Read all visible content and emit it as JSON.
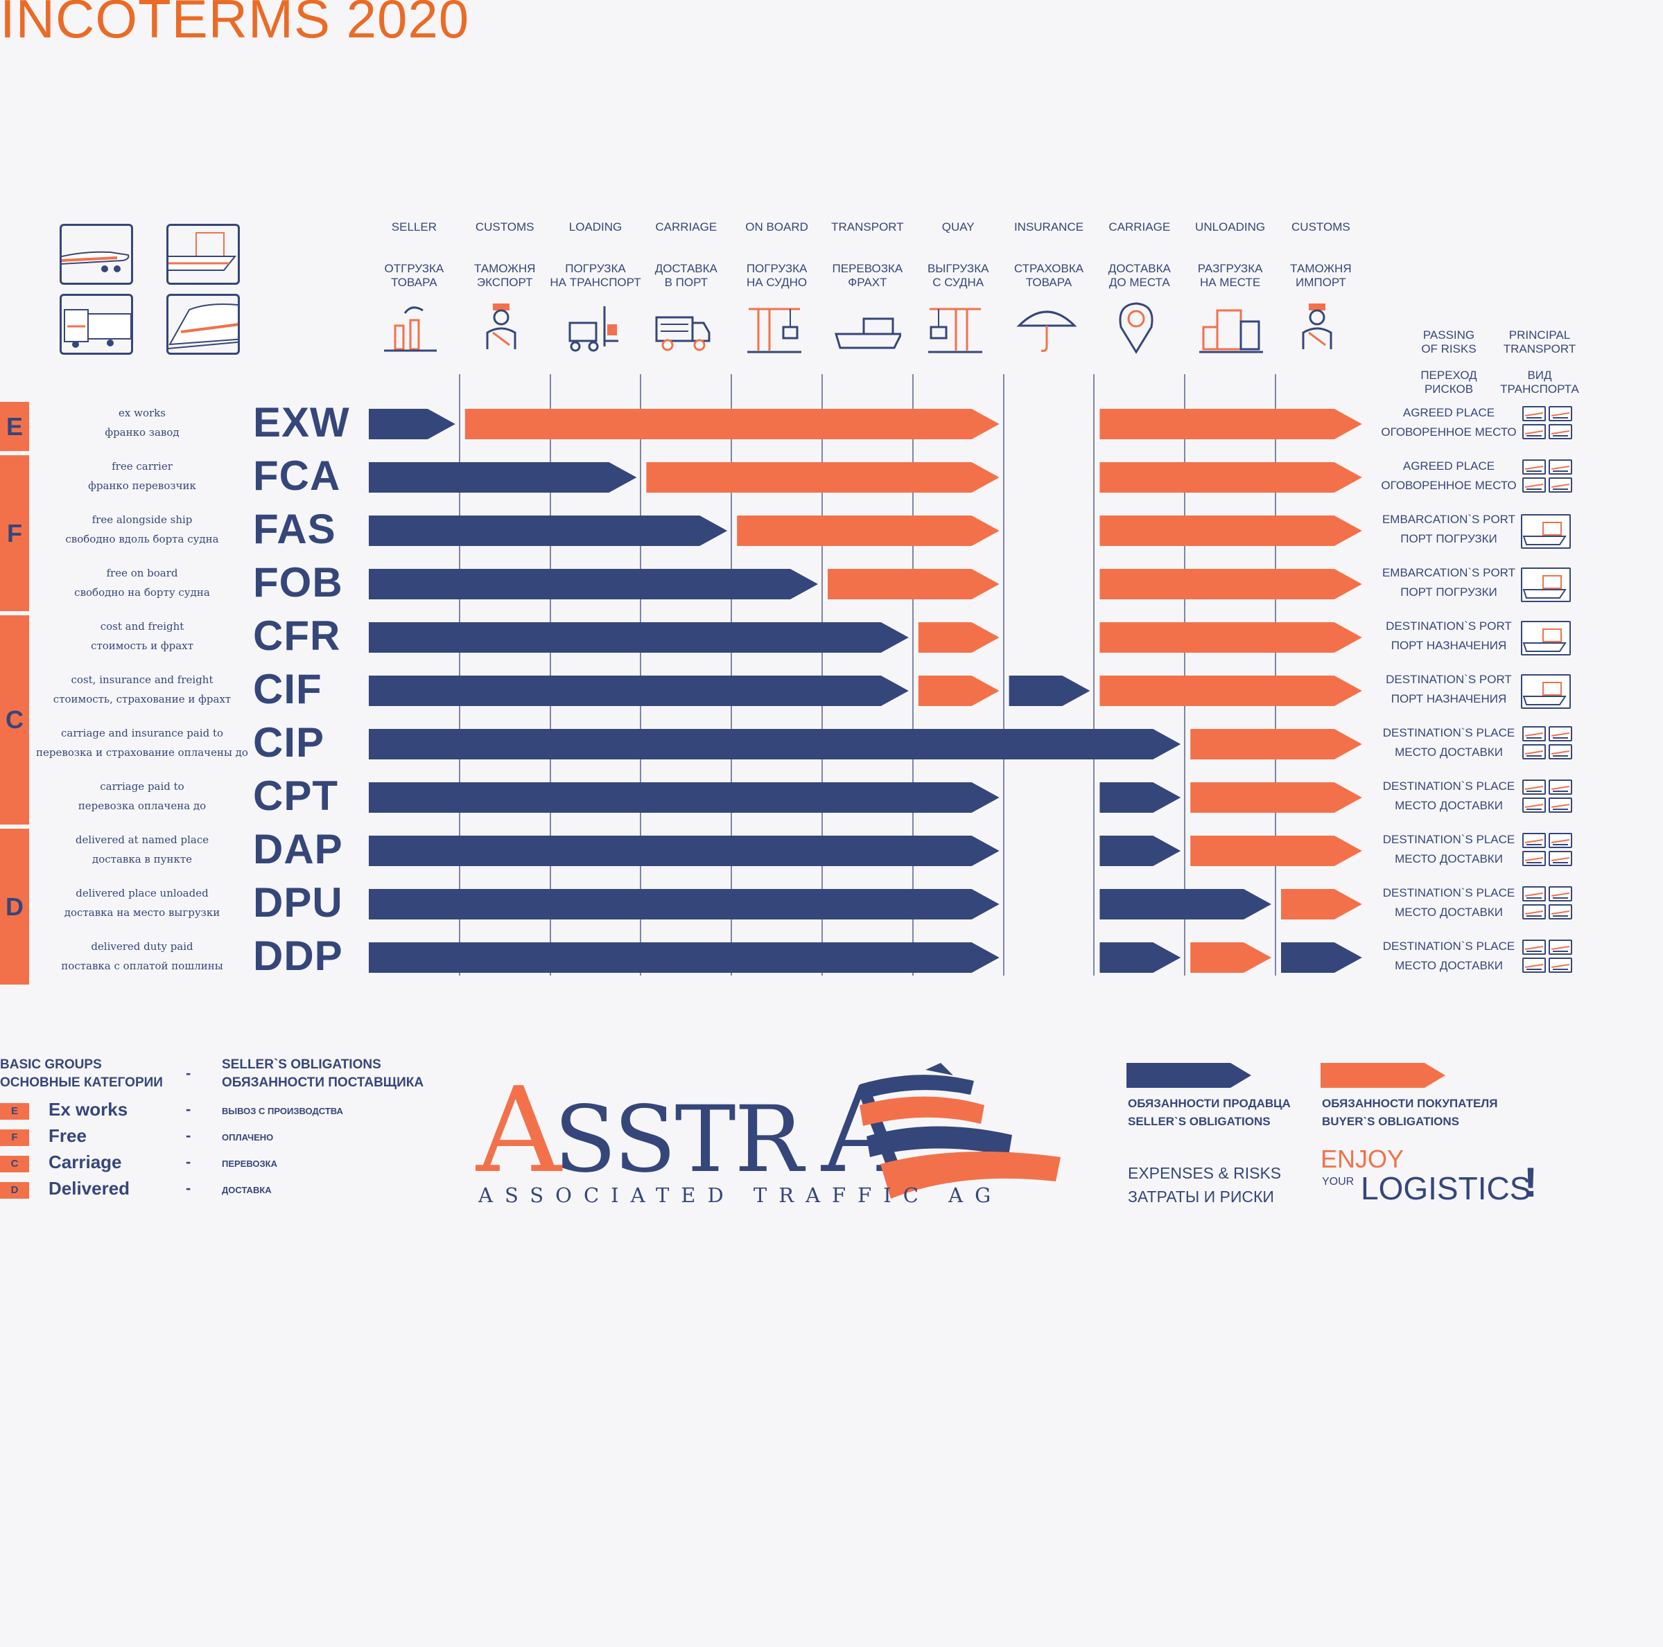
{
  "title": "INCOTERMS 2020",
  "colors": {
    "seller": "#35467a",
    "buyer": "#f3714a",
    "accent": "#ea6b26"
  },
  "transport_pictograms": [
    "airplane-icon",
    "cargo-ship-icon",
    "truck-icon",
    "train-icon"
  ],
  "columns": [
    {
      "en": "SELLER",
      "ru": "ОТГРУЗКА\nТОВАРА",
      "icon": "factory-icon"
    },
    {
      "en": "CUSTOMS",
      "ru": "ТАМОЖНЯ\nЭКСПОРТ",
      "icon": "customs-officer-icon"
    },
    {
      "en": "LOADING",
      "ru": "ПОГРУЗКА\nНА ТРАНСПОРТ",
      "icon": "forklift-icon"
    },
    {
      "en": "CARRIAGE",
      "ru": "ДОСТАВКА\nВ ПОРТ",
      "icon": "truck-icon"
    },
    {
      "en": "ON BOARD",
      "ru": "ПОГРУЗКА\nНА СУДНО",
      "icon": "crane-icon"
    },
    {
      "en": "TRANSPORT",
      "ru": "ПЕРЕВОЗКА\nФРАХТ",
      "icon": "ship-icon"
    },
    {
      "en": "QUAY",
      "ru": "ВЫГРУЗКА\nС СУДНА",
      "icon": "quay-crane-icon"
    },
    {
      "en": "INSURANCE",
      "ru": "СТРАХОВКА\nТОВАРА",
      "icon": "umbrella-icon"
    },
    {
      "en": "CARRIAGE",
      "ru": "ДОСТАВКА\nДО МЕСТА",
      "icon": "map-pin-icon"
    },
    {
      "en": "UNLOADING",
      "ru": "РАЗГРУЗКА\nНА МЕСТЕ",
      "icon": "warehouse-icon"
    },
    {
      "en": "CUSTOMS",
      "ru": "ТАМОЖНЯ\nИМПОРТ",
      "icon": "customs-officer-icon"
    }
  ],
  "right_headers": {
    "risk_en": "PASSING\nOF RISKS",
    "risk_ru": "ПЕРЕХОД\nРИСКОВ",
    "transport_en": "PRINCIPAL\nTRANSPORT",
    "transport_ru": "ВИД\nТРАНСПОРТА"
  },
  "groups": [
    {
      "letter": "E",
      "rows": 1
    },
    {
      "letter": "F",
      "rows": 3
    },
    {
      "letter": "C",
      "rows": 4
    },
    {
      "letter": "D",
      "rows": 3
    }
  ],
  "terms": [
    {
      "code": "EXW",
      "en": "ex works",
      "ru": "франко завод",
      "risk_en": "AGREED PLACE",
      "risk_ru": "ОГОВОРЕННОЕ МЕСТО",
      "transport": "any",
      "segments": [
        {
          "owner": "seller",
          "from": 0,
          "to": 1
        },
        {
          "owner": "buyer",
          "from": 1,
          "to": 7
        },
        {
          "owner": "buyer",
          "from": 8,
          "to": 11
        }
      ]
    },
    {
      "code": "FCA",
      "en": "free carrier",
      "ru": "франко перевозчик",
      "risk_en": "AGREED PLACE",
      "risk_ru": "ОГОВОРЕННОЕ МЕСТО",
      "transport": "any",
      "segments": [
        {
          "owner": "seller",
          "from": 0,
          "to": 3
        },
        {
          "owner": "buyer",
          "from": 3,
          "to": 7
        },
        {
          "owner": "buyer",
          "from": 8,
          "to": 11
        }
      ]
    },
    {
      "code": "FAS",
      "en": "free alongside ship",
      "ru": "свободно вдоль борта судна",
      "risk_en": "EMBARCATION`S PORT",
      "risk_ru": "ПОРТ ПОГРУЗКИ",
      "transport": "sea",
      "segments": [
        {
          "owner": "seller",
          "from": 0,
          "to": 4
        },
        {
          "owner": "buyer",
          "from": 4,
          "to": 7
        },
        {
          "owner": "buyer",
          "from": 8,
          "to": 11
        }
      ]
    },
    {
      "code": "FOB",
      "en": "free on board",
      "ru": "свободно на борту судна",
      "risk_en": "EMBARCATION`S PORT",
      "risk_ru": "ПОРТ ПОГРУЗКИ",
      "transport": "sea",
      "segments": [
        {
          "owner": "seller",
          "from": 0,
          "to": 5
        },
        {
          "owner": "buyer",
          "from": 5,
          "to": 7
        },
        {
          "owner": "buyer",
          "from": 8,
          "to": 11
        }
      ]
    },
    {
      "code": "CFR",
      "en": "cost and freight",
      "ru": "стоимость и фрахт",
      "risk_en": "DESTINATION`S PORT",
      "risk_ru": "ПОРТ НАЗНАЧЕНИЯ",
      "transport": "sea",
      "segments": [
        {
          "owner": "seller",
          "from": 0,
          "to": 6
        },
        {
          "owner": "buyer",
          "from": 6,
          "to": 7
        },
        {
          "owner": "buyer",
          "from": 8,
          "to": 11
        }
      ]
    },
    {
      "code": "CIF",
      "en": "cost, insurance and freight",
      "ru": "стоимость, страхование и фрахт",
      "risk_en": "DESTINATION`S PORT",
      "risk_ru": "ПОРТ НАЗНАЧЕНИЯ",
      "transport": "sea",
      "segments": [
        {
          "owner": "seller",
          "from": 0,
          "to": 6
        },
        {
          "owner": "buyer",
          "from": 6,
          "to": 7
        },
        {
          "owner": "seller",
          "from": 7,
          "to": 8
        },
        {
          "owner": "buyer",
          "from": 8,
          "to": 11
        }
      ]
    },
    {
      "code": "CIP",
      "en": "carriage and insurance paid to",
      "ru": "перевозка и страхование оплачены до",
      "risk_en": "DESTINATION`S PLACE",
      "risk_ru": "МЕСТО ДОСТАВКИ",
      "transport": "any",
      "segments": [
        {
          "owner": "seller",
          "from": 0,
          "to": 9
        },
        {
          "owner": "buyer",
          "from": 9,
          "to": 11
        }
      ]
    },
    {
      "code": "CPT",
      "en": "carriage paid to",
      "ru": "перевозка оплачена до",
      "risk_en": "DESTINATION`S PLACE",
      "risk_ru": "МЕСТО ДОСТАВКИ",
      "transport": "any",
      "segments": [
        {
          "owner": "seller",
          "from": 0,
          "to": 7
        },
        {
          "owner": "seller",
          "from": 8,
          "to": 9
        },
        {
          "owner": "buyer",
          "from": 9,
          "to": 11
        }
      ]
    },
    {
      "code": "DAP",
      "en": "delivered at named place",
      "ru": "доставка в пункте",
      "risk_en": "DESTINATION`S PLACE",
      "risk_ru": "МЕСТО ДОСТАВКИ",
      "transport": "any",
      "segments": [
        {
          "owner": "seller",
          "from": 0,
          "to": 7
        },
        {
          "owner": "seller",
          "from": 8,
          "to": 9
        },
        {
          "owner": "buyer",
          "from": 9,
          "to": 11
        }
      ]
    },
    {
      "code": "DPU",
      "en": "delivered place unloaded",
      "ru": "доставка на место выгрузки",
      "risk_en": "DESTINATION`S PLACE",
      "risk_ru": "МЕСТО ДОСТАВКИ",
      "transport": "any",
      "segments": [
        {
          "owner": "seller",
          "from": 0,
          "to": 7
        },
        {
          "owner": "seller",
          "from": 8,
          "to": 10
        },
        {
          "owner": "buyer",
          "from": 10,
          "to": 11
        }
      ]
    },
    {
      "code": "DDP",
      "en": "delivered duty paid",
      "ru": "поставка с оплатой пошлины",
      "risk_en": "DESTINATION`S PLACE",
      "risk_ru": "МЕСТО ДОСТАВКИ",
      "transport": "any",
      "segments": [
        {
          "owner": "seller",
          "from": 0,
          "to": 7
        },
        {
          "owner": "seller",
          "from": 8,
          "to": 9
        },
        {
          "owner": "buyer",
          "from": 9,
          "to": 10
        },
        {
          "owner": "seller",
          "from": 10,
          "to": 11
        }
      ]
    }
  ],
  "legend": {
    "groups_head_en": "BASIC GROUPS",
    "groups_head_ru": "ОСНОВНЫЕ КАТЕГОРИИ",
    "dash": "-",
    "oblig_head_en": "SELLER`S OBLIGATIONS",
    "oblig_head_ru": "ОБЯЗАННОСТИ ПОСТАВЩИКА",
    "items": [
      {
        "letter": "E",
        "name": "Ex works",
        "ru": "ВЫВОЗ С ПРОИЗВОДСТВА"
      },
      {
        "letter": "F",
        "name": "Free",
        "ru": "ОПЛАЧЕНО"
      },
      {
        "letter": "C",
        "name": "Carriage",
        "ru": "ПЕРЕВОЗКА"
      },
      {
        "letter": "D",
        "name": "Delivered",
        "ru": "ДОСТАВКА"
      }
    ]
  },
  "logo": {
    "name": "ASSTRA",
    "tagline": "ASSOCIATED TRAFFIC AG"
  },
  "key": {
    "seller": "ОБЯЗАННОСТИ ПРОДАВЦА\nSELLER`S OBLIGATIONS",
    "buyer": "ОБЯЗАННОСТИ ПОКУПАТЕЛЯ\nBUYER`S OBLIGATIONS",
    "expenses": "EXPENSES & RISKS\nЗАТРАТЫ И РИСКИ"
  },
  "slogan": {
    "enjoy": "ENJOY",
    "your": "YOUR",
    "logistics": "LOGISTICS",
    "bang": "!"
  }
}
